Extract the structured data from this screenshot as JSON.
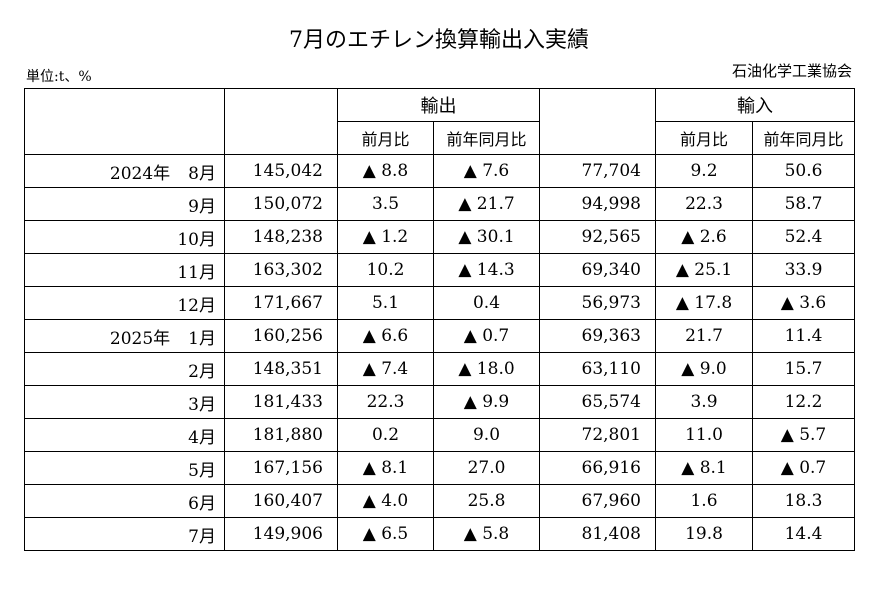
{
  "title": "7月のエチレン換算輸出入実績",
  "unit": "単位:t、%",
  "source": "石油化学工業協会",
  "headers": {
    "export": "輸出",
    "import": "輸入",
    "mom": "前月比",
    "yoy": "前年同月比"
  },
  "rows": [
    {
      "year": "2024年",
      "month": "8月",
      "export": "145,042",
      "export_mom": "▲ 8.8",
      "export_yoy": "▲ 7.6",
      "import": "77,704",
      "import_mom": "9.2",
      "import_yoy": "50.6"
    },
    {
      "year": "",
      "month": "9月",
      "export": "150,072",
      "export_mom": "3.5",
      "export_yoy": "▲ 21.7",
      "import": "94,998",
      "import_mom": "22.3",
      "import_yoy": "58.7"
    },
    {
      "year": "",
      "month": "10月",
      "export": "148,238",
      "export_mom": "▲ 1.2",
      "export_yoy": "▲ 30.1",
      "import": "92,565",
      "import_mom": "▲ 2.6",
      "import_yoy": "52.4"
    },
    {
      "year": "",
      "month": "11月",
      "export": "163,302",
      "export_mom": "10.2",
      "export_yoy": "▲ 14.3",
      "import": "69,340",
      "import_mom": "▲ 25.1",
      "import_yoy": "33.9"
    },
    {
      "year": "",
      "month": "12月",
      "export": "171,667",
      "export_mom": "5.1",
      "export_yoy": "0.4",
      "import": "56,973",
      "import_mom": "▲ 17.8",
      "import_yoy": "▲ 3.6"
    },
    {
      "year": "2025年",
      "month": "1月",
      "export": "160,256",
      "export_mom": "▲ 6.6",
      "export_yoy": "▲ 0.7",
      "import": "69,363",
      "import_mom": "21.7",
      "import_yoy": "11.4"
    },
    {
      "year": "",
      "month": "2月",
      "export": "148,351",
      "export_mom": "▲ 7.4",
      "export_yoy": "▲ 18.0",
      "import": "63,110",
      "import_mom": "▲ 9.0",
      "import_yoy": "15.7"
    },
    {
      "year": "",
      "month": "3月",
      "export": "181,433",
      "export_mom": "22.3",
      "export_yoy": "▲ 9.9",
      "import": "65,574",
      "import_mom": "3.9",
      "import_yoy": "12.2"
    },
    {
      "year": "",
      "month": "4月",
      "export": "181,880",
      "export_mom": "0.2",
      "export_yoy": "9.0",
      "import": "72,801",
      "import_mom": "11.0",
      "import_yoy": "▲ 5.7"
    },
    {
      "year": "",
      "month": "5月",
      "export": "167,156",
      "export_mom": "▲ 8.1",
      "export_yoy": "27.0",
      "import": "66,916",
      "import_mom": "▲ 8.1",
      "import_yoy": "▲ 0.7"
    },
    {
      "year": "",
      "month": "6月",
      "export": "160,407",
      "export_mom": "▲ 4.0",
      "export_yoy": "25.8",
      "import": "67,960",
      "import_mom": "1.6",
      "import_yoy": "18.3"
    },
    {
      "year": "",
      "month": "7月",
      "export": "149,906",
      "export_mom": "▲ 6.5",
      "export_yoy": "▲ 5.8",
      "import": "81,408",
      "import_mom": "19.8",
      "import_yoy": "14.4"
    }
  ]
}
